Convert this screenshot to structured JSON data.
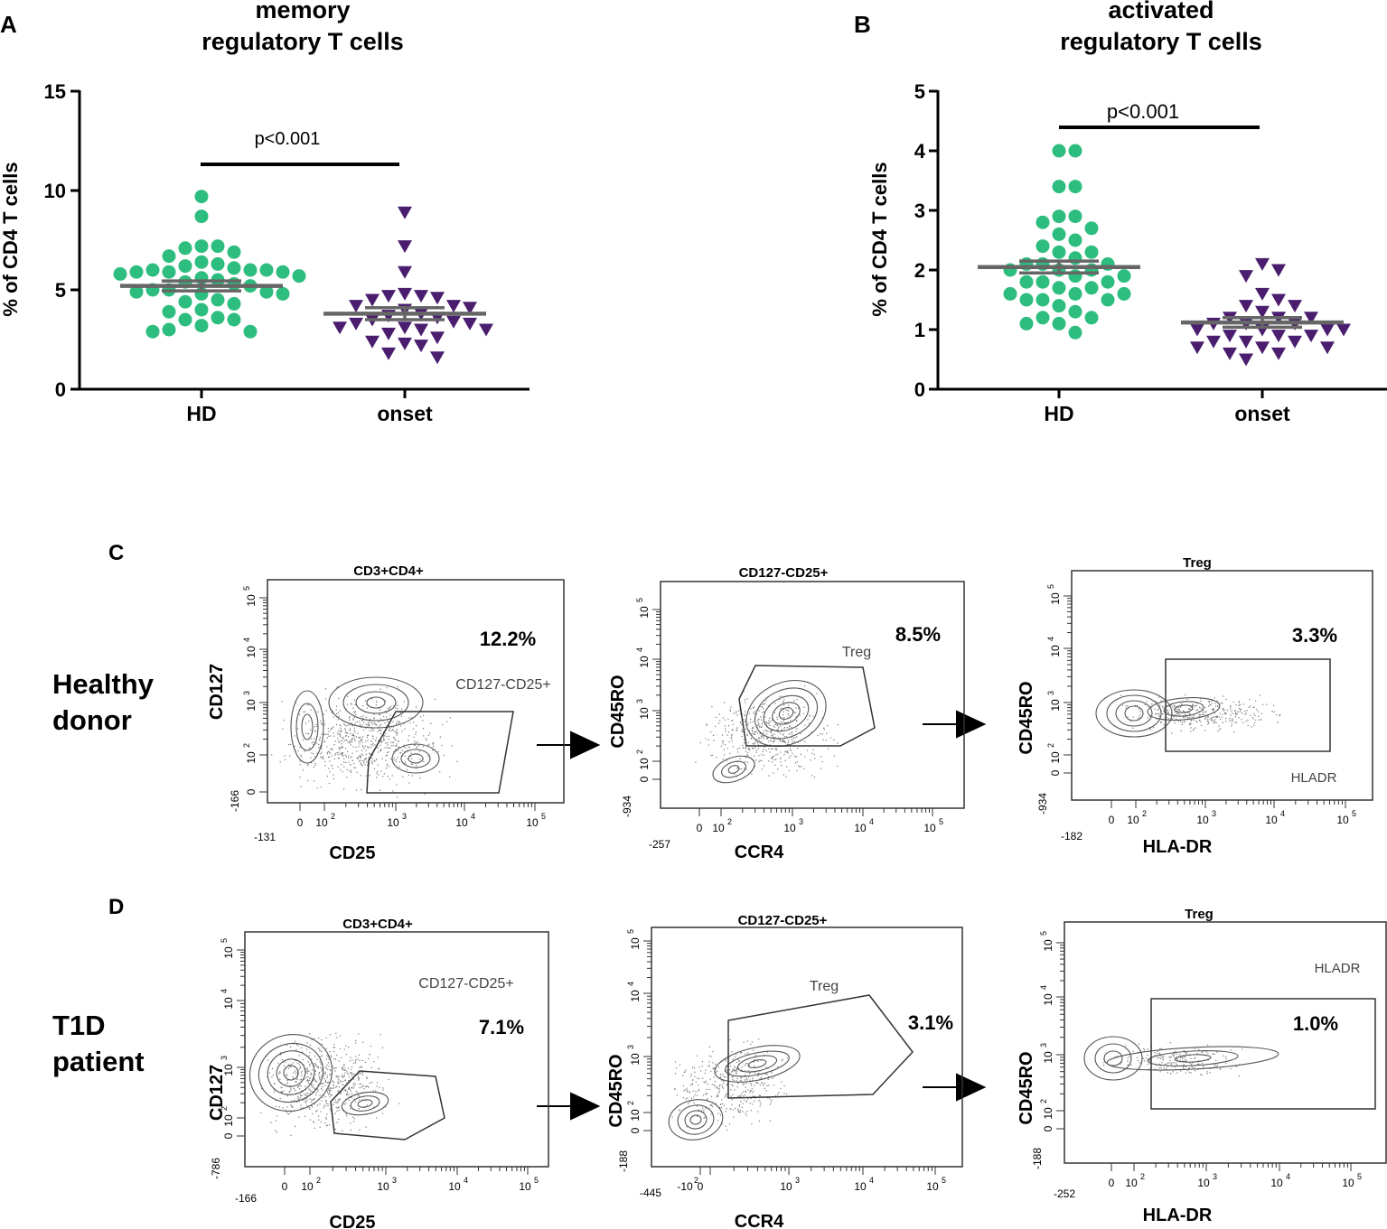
{
  "colors": {
    "hd": "#2dbd7e",
    "onset": "#4a1d6e",
    "mean_line": "#666666",
    "axis": "#000000",
    "contour": "#555555"
  },
  "chart_data": [
    {
      "panel_label": "A",
      "type": "scatter",
      "title": [
        "memory",
        "regulatory T cells"
      ],
      "ylabel": "% of CD4 T cells",
      "ylim": [
        0,
        15
      ],
      "yticks": [
        "0",
        "5",
        "10",
        "15"
      ],
      "categories": [
        "HD",
        "onset"
      ],
      "pvalue": "p<0.001",
      "series": [
        {
          "name": "HD",
          "marker": "circle",
          "mean": 5.2,
          "sem": 0.25,
          "values": [
            9.7,
            8.7,
            7.2,
            7.2,
            7.1,
            6.9,
            6.7,
            6.4,
            6.3,
            6.2,
            6.1,
            6.0,
            6.0,
            6.0,
            5.9,
            5.9,
            5.9,
            5.8,
            5.7,
            5.6,
            5.5,
            5.4,
            5.3,
            5.2,
            5.0,
            5.0,
            4.9,
            4.9,
            4.8,
            4.8,
            4.5,
            4.4,
            4.3,
            4.0,
            3.9,
            3.6,
            3.5,
            3.5,
            3.2,
            3.0,
            2.9,
            2.9
          ]
        },
        {
          "name": "onset",
          "marker": "triangle-down",
          "mean": 3.8,
          "sem": 0.3,
          "values": [
            8.9,
            7.2,
            5.9,
            4.8,
            4.7,
            4.7,
            4.6,
            4.5,
            4.2,
            4.2,
            4.1,
            4.0,
            3.8,
            3.7,
            3.6,
            3.5,
            3.4,
            3.3,
            3.3,
            3.1,
            3.1,
            3.0,
            3.0,
            2.8,
            2.6,
            2.4,
            2.3,
            2.2,
            1.8,
            1.6
          ]
        }
      ]
    },
    {
      "panel_label": "B",
      "type": "scatter",
      "title": [
        "activated",
        "regulatory T cells"
      ],
      "ylabel": "% of CD4 T cells",
      "ylim": [
        0,
        5
      ],
      "yticks": [
        "0",
        "1",
        "2",
        "3",
        "4",
        "5"
      ],
      "categories": [
        "HD",
        "onset"
      ],
      "pvalue": "p<0.001",
      "series": [
        {
          "name": "HD",
          "marker": "circle",
          "mean": 2.05,
          "sem": 0.1,
          "values": [
            4.0,
            4.0,
            3.4,
            3.4,
            2.9,
            2.9,
            2.8,
            2.7,
            2.6,
            2.5,
            2.4,
            2.3,
            2.3,
            2.2,
            2.1,
            2.1,
            2.1,
            2.0,
            2.0,
            2.0,
            1.9,
            1.9,
            1.8,
            1.8,
            1.8,
            1.7,
            1.7,
            1.6,
            1.6,
            1.6,
            1.5,
            1.5,
            1.5,
            1.4,
            1.3,
            1.2,
            1.2,
            1.1,
            1.1,
            0.95
          ]
        },
        {
          "name": "onset",
          "marker": "triangle-down",
          "mean": 1.12,
          "sem": 0.08,
          "values": [
            2.1,
            2.0,
            1.9,
            1.6,
            1.5,
            1.4,
            1.4,
            1.3,
            1.2,
            1.2,
            1.2,
            1.1,
            1.1,
            1.1,
            1.0,
            1.0,
            1.0,
            1.0,
            0.9,
            0.9,
            0.9,
            0.8,
            0.8,
            0.8,
            0.7,
            0.7,
            0.7,
            0.6,
            0.6,
            0.5
          ]
        }
      ]
    }
  ],
  "flow": {
    "tick_labels": [
      "10",
      "2",
      "10",
      "3",
      "10",
      "4",
      "10",
      "5",
      "0"
    ],
    "rows": [
      {
        "panel_label": "C",
        "row_label": [
          "Healthy",
          "donor"
        ],
        "plots": [
          {
            "title": "CD3+CD4+",
            "xlabel": "CD25",
            "ylabel": "CD127",
            "gate": "CD127-CD25+",
            "percent": "12.2%",
            "xmin": "-131",
            "ymin": "-166"
          },
          {
            "title": "CD127-CD25+",
            "xlabel": "CCR4",
            "ylabel": "CD45RO",
            "gate": "Treg",
            "percent": "8.5%",
            "xmin": "-257",
            "ymin": "-934"
          },
          {
            "title": "Treg",
            "xlabel": "HLA-DR",
            "ylabel": "CD45RO",
            "gate": "HLADR",
            "percent": "3.3%",
            "xmin": "-182",
            "ymin": "-934"
          }
        ]
      },
      {
        "panel_label": "D",
        "row_label": [
          "T1D",
          "patient"
        ],
        "plots": [
          {
            "title": "CD3+CD4+",
            "xlabel": "CD25",
            "ylabel": "CD127",
            "gate": "CD127-CD25+",
            "percent": "7.1%",
            "xmin": "-166",
            "ymin": "-786"
          },
          {
            "title": "CD127-CD25+",
            "xlabel": "CCR4",
            "ylabel": "CD45RO",
            "gate": "Treg",
            "percent": "3.1%",
            "xmin": "-445",
            "ymin": "-188",
            "xneg": "-10",
            "xneg_exp": "2"
          },
          {
            "title": "Treg",
            "xlabel": "HLA-DR",
            "ylabel": "CD45RO",
            "gate": "HLADR",
            "percent": "1.0%",
            "xmin": "-252",
            "ymin": "-188"
          }
        ]
      }
    ]
  }
}
